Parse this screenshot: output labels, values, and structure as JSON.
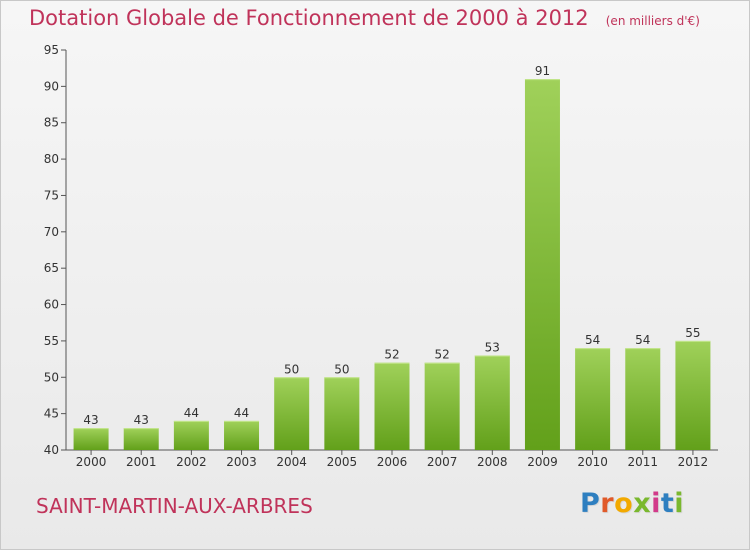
{
  "header": {
    "title": "Dotation Globale de Fonctionnement de 2000 à 2012",
    "subtitle": "(en milliers d'€)"
  },
  "footer": {
    "commune": "SAINT-MARTIN-AUX-ARBRES",
    "logo_text": "Proxiti",
    "logo_colors": [
      "#2e7fc0",
      "#e05a2a",
      "#f2a900",
      "#7ab82e",
      "#d23a8a",
      "#2e7fc0",
      "#7ab82e"
    ]
  },
  "chart_data": {
    "type": "bar",
    "title": "Dotation Globale de Fonctionnement de 2000 à 2012",
    "subtitle": "(en milliers d'€)",
    "categories": [
      "2000",
      "2001",
      "2002",
      "2003",
      "2004",
      "2005",
      "2006",
      "2007",
      "2008",
      "2009",
      "2010",
      "2011",
      "2012"
    ],
    "values": [
      43,
      43,
      44,
      44,
      50,
      50,
      52,
      52,
      53,
      91,
      54,
      54,
      55
    ],
    "ylim": [
      40,
      95
    ],
    "yticks": [
      40,
      45,
      50,
      55,
      60,
      65,
      70,
      75,
      80,
      85,
      90,
      95
    ],
    "grid": false,
    "bar_color_top": "#a0d15a",
    "bar_color_bottom": "#62a01a"
  }
}
